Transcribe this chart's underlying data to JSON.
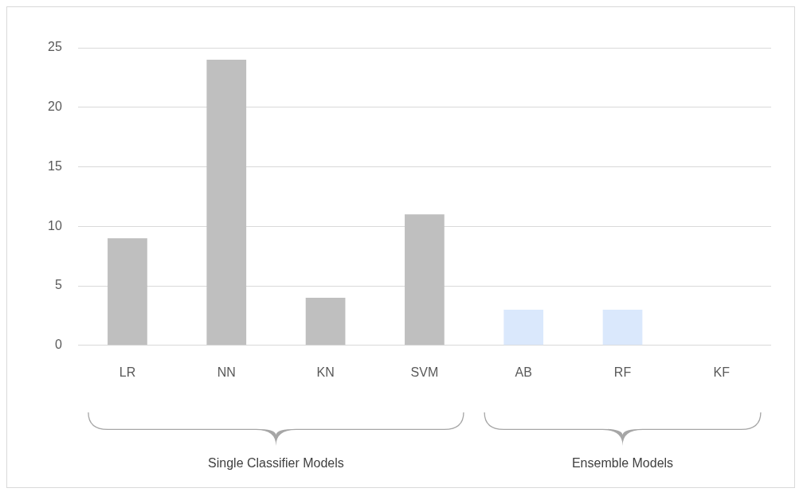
{
  "chart_data": {
    "type": "bar",
    "categories": [
      "LR",
      "NN",
      "KN",
      "SVM",
      "AB",
      "RF",
      "KF"
    ],
    "values": [
      9,
      24,
      4,
      11,
      3,
      3,
      0
    ],
    "colors": [
      "#bfbfbf",
      "#bfbfbf",
      "#bfbfbf",
      "#bfbfbf",
      "#dae8fc",
      "#dae8fc",
      "#dae8fc"
    ],
    "ylim": [
      0,
      25
    ],
    "yticks": [
      0,
      5,
      10,
      15,
      20,
      25
    ],
    "grid": "y",
    "legend": false,
    "annotations": [
      "Single Classifier Models",
      "Ensemble Models"
    ]
  }
}
